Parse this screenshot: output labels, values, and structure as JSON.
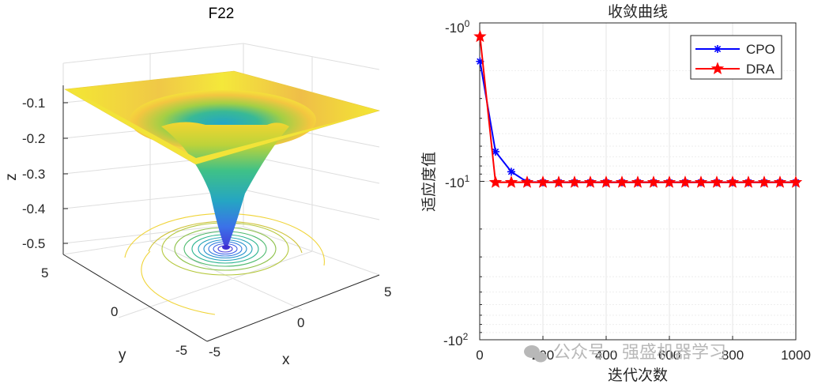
{
  "surface_plot": {
    "title": "F22",
    "zlabel": "z",
    "xlabel": "x",
    "ylabel": "y",
    "z_ticks": [
      "-0.1",
      "-0.2",
      "-0.3",
      "-0.4",
      "-0.5"
    ],
    "x_ticks": [
      "-5",
      "0",
      "5"
    ],
    "y_ticks": [
      "5",
      "0",
      "-5"
    ]
  },
  "chart_data": {
    "type": "line",
    "title": "收敛曲线",
    "xlabel": "迭代次数",
    "ylabel": "适应度值",
    "xlim": [
      0,
      1000
    ],
    "y_scale": "log (negative values)",
    "ylim": [
      -100,
      -1
    ],
    "x_tick_labels": [
      "0",
      "200",
      "400",
      "600",
      "800",
      "1000"
    ],
    "y_tick_labels": [
      {
        "base": "-10",
        "exp": "0"
      },
      {
        "base": "-10",
        "exp": "1"
      },
      {
        "base": "-10",
        "exp": "2"
      }
    ],
    "grid": true,
    "legend_position": "top-right",
    "series": [
      {
        "name": "CPO",
        "color": "#0000ff",
        "marker": "asterisk",
        "x": [
          1,
          50,
          100,
          150,
          200,
          250,
          300,
          350,
          400,
          450,
          500,
          550,
          600,
          650,
          700,
          750,
          800,
          850,
          900,
          950,
          1000
        ],
        "y": [
          -1.75,
          -6.5,
          -8.7,
          -10.1,
          -10.15,
          -10.15,
          -10.15,
          -10.15,
          -10.15,
          -10.15,
          -10.15,
          -10.15,
          -10.15,
          -10.15,
          -10.15,
          -10.15,
          -10.15,
          -10.15,
          -10.15,
          -10.15,
          -10.15
        ]
      },
      {
        "name": "DRA",
        "color": "#ff0000",
        "marker": "star",
        "x": [
          1,
          50,
          100,
          150,
          200,
          250,
          300,
          350,
          400,
          450,
          500,
          550,
          600,
          650,
          700,
          750,
          800,
          850,
          900,
          950,
          1000
        ],
        "y": [
          -1.22,
          -10.15,
          -10.15,
          -10.15,
          -10.15,
          -10.15,
          -10.15,
          -10.15,
          -10.15,
          -10.15,
          -10.15,
          -10.15,
          -10.15,
          -10.15,
          -10.15,
          -10.15,
          -10.15,
          -10.15,
          -10.15,
          -10.15,
          -10.15
        ]
      }
    ]
  },
  "watermark": "公众号 · 强盛机器学习"
}
